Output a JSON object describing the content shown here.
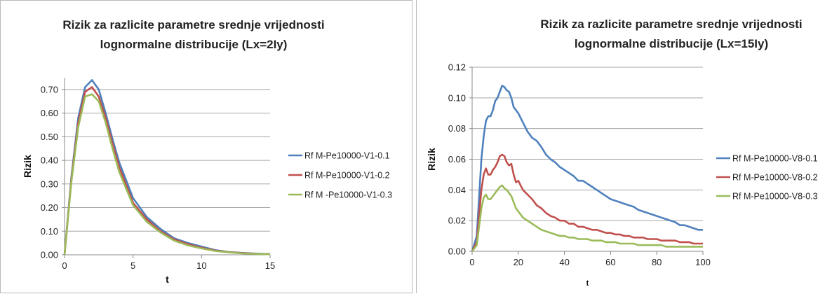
{
  "chart_data": [
    {
      "type": "line",
      "title_lines": [
        "Rizik za razlicite parametre srednje vrijednosti",
        "lognormalne distribucije (Lx=2Iy)"
      ],
      "xlabel": "t",
      "ylabel": "Rizik",
      "xlim": [
        0,
        15
      ],
      "ylim": [
        0,
        0.75
      ],
      "xticks": [
        0,
        5,
        10,
        15
      ],
      "xtick_labels": [
        "0",
        "5",
        "10",
        "15"
      ],
      "yticks": [
        0,
        0.1,
        0.2,
        0.3,
        0.4,
        0.5,
        0.6,
        0.7
      ],
      "ytick_labels": [
        "0.00",
        "0.10",
        "0.20",
        "0.30",
        "0.40",
        "0.50",
        "0.60",
        "0.70"
      ],
      "grid": "horizontal",
      "legend": "right",
      "series": [
        {
          "name": "Rf M-Pe10000-V1-0.1",
          "color": "#4f81bd",
          "x": [
            0,
            0.5,
            1,
            1.5,
            2,
            2.5,
            3,
            3.5,
            4,
            5,
            6,
            7,
            8,
            9,
            10,
            11,
            12,
            13,
            14,
            15
          ],
          "y": [
            0.0,
            0.33,
            0.58,
            0.71,
            0.74,
            0.7,
            0.6,
            0.49,
            0.39,
            0.24,
            0.16,
            0.11,
            0.07,
            0.05,
            0.035,
            0.02,
            0.012,
            0.008,
            0.005,
            0.003
          ]
        },
        {
          "name": "Rf M-Pe10000-V1-0.2",
          "color": "#c0504d",
          "x": [
            0,
            0.5,
            1,
            1.5,
            2,
            2.5,
            3,
            3.5,
            4,
            5,
            6,
            7,
            8,
            9,
            10,
            11,
            12,
            13,
            14,
            15
          ],
          "y": [
            0.0,
            0.32,
            0.56,
            0.69,
            0.71,
            0.67,
            0.58,
            0.47,
            0.37,
            0.22,
            0.15,
            0.1,
            0.065,
            0.045,
            0.03,
            0.018,
            0.011,
            0.007,
            0.004,
            0.003
          ]
        },
        {
          "name": "Rf M -Pe10000-V1-0.3",
          "color": "#9bbb59",
          "x": [
            0,
            0.5,
            1,
            1.5,
            2,
            2.5,
            3,
            3.5,
            4,
            5,
            6,
            7,
            8,
            9,
            10,
            11,
            12,
            13,
            14,
            15
          ],
          "y": [
            0.0,
            0.31,
            0.54,
            0.67,
            0.68,
            0.65,
            0.56,
            0.45,
            0.35,
            0.21,
            0.14,
            0.095,
            0.06,
            0.04,
            0.027,
            0.016,
            0.01,
            0.006,
            0.004,
            0.002
          ]
        }
      ]
    },
    {
      "type": "line",
      "title_lines": [
        "Rizik za razlicite parametre srednje vrijednosti",
        "lognormalne distribucije (Lx=15Iy)"
      ],
      "xlabel": "t",
      "ylabel": "Rizik",
      "xlim": [
        0,
        100
      ],
      "ylim": [
        0,
        0.12
      ],
      "xticks": [
        0,
        20,
        40,
        60,
        80,
        100
      ],
      "xtick_labels": [
        "0",
        "20",
        "40",
        "60",
        "80",
        "100"
      ],
      "yticks": [
        0,
        0.02,
        0.04,
        0.06,
        0.08,
        0.1,
        0.12
      ],
      "ytick_labels": [
        "0.00",
        "0.02",
        "0.04",
        "0.06",
        "0.08",
        "0.10",
        "0.12"
      ],
      "grid": "horizontal",
      "legend": "right",
      "series": [
        {
          "name": "Rf M-Pe10000-V8-0.1",
          "color": "#4f81bd",
          "x": [
            0,
            2,
            4,
            5,
            6,
            7,
            8,
            9,
            10,
            11,
            12,
            13,
            14,
            15,
            16,
            17,
            18,
            19,
            20,
            22,
            24,
            26,
            28,
            30,
            32,
            34,
            36,
            38,
            40,
            42,
            44,
            46,
            48,
            50,
            52,
            54,
            56,
            58,
            60,
            62,
            64,
            66,
            68,
            70,
            72,
            74,
            76,
            78,
            80,
            82,
            84,
            86,
            88,
            90,
            92,
            94,
            96,
            98,
            100
          ],
          "y": [
            0.0,
            0.01,
            0.06,
            0.075,
            0.085,
            0.088,
            0.088,
            0.092,
            0.098,
            0.1,
            0.104,
            0.108,
            0.107,
            0.105,
            0.104,
            0.1,
            0.094,
            0.092,
            0.09,
            0.084,
            0.078,
            0.074,
            0.072,
            0.068,
            0.063,
            0.06,
            0.058,
            0.055,
            0.053,
            0.051,
            0.049,
            0.046,
            0.046,
            0.044,
            0.042,
            0.04,
            0.038,
            0.036,
            0.034,
            0.033,
            0.032,
            0.031,
            0.03,
            0.029,
            0.027,
            0.026,
            0.025,
            0.024,
            0.023,
            0.022,
            0.021,
            0.02,
            0.019,
            0.017,
            0.017,
            0.016,
            0.015,
            0.014,
            0.014
          ]
        },
        {
          "name": "Rf M-Pe10000-V8-0.2",
          "color": "#c0504d",
          "x": [
            0,
            2,
            4,
            5,
            6,
            7,
            8,
            9,
            10,
            11,
            12,
            13,
            14,
            15,
            16,
            17,
            18,
            19,
            20,
            22,
            24,
            26,
            28,
            30,
            32,
            34,
            36,
            38,
            40,
            42,
            44,
            46,
            48,
            50,
            52,
            54,
            56,
            58,
            60,
            62,
            64,
            66,
            68,
            70,
            72,
            74,
            76,
            78,
            80,
            82,
            84,
            86,
            88,
            90,
            92,
            94,
            96,
            98,
            100
          ],
          "y": [
            0.0,
            0.006,
            0.04,
            0.05,
            0.054,
            0.05,
            0.05,
            0.053,
            0.055,
            0.058,
            0.062,
            0.063,
            0.062,
            0.058,
            0.056,
            0.057,
            0.05,
            0.045,
            0.046,
            0.04,
            0.037,
            0.034,
            0.03,
            0.028,
            0.025,
            0.023,
            0.022,
            0.02,
            0.02,
            0.018,
            0.018,
            0.016,
            0.016,
            0.015,
            0.014,
            0.014,
            0.013,
            0.012,
            0.012,
            0.011,
            0.011,
            0.01,
            0.01,
            0.009,
            0.009,
            0.009,
            0.008,
            0.008,
            0.008,
            0.007,
            0.007,
            0.007,
            0.007,
            0.006,
            0.006,
            0.006,
            0.005,
            0.005,
            0.005
          ]
        },
        {
          "name": "Rf M-Pe10000-V8-0.3",
          "color": "#9bbb59",
          "x": [
            0,
            2,
            4,
            5,
            6,
            7,
            8,
            9,
            10,
            11,
            12,
            13,
            14,
            15,
            16,
            17,
            18,
            19,
            20,
            22,
            24,
            26,
            28,
            30,
            32,
            34,
            36,
            38,
            40,
            42,
            44,
            46,
            48,
            50,
            52,
            54,
            56,
            58,
            60,
            62,
            64,
            66,
            68,
            70,
            72,
            74,
            76,
            78,
            80,
            82,
            84,
            86,
            88,
            90,
            92,
            94,
            96,
            98,
            100
          ],
          "y": [
            0.0,
            0.004,
            0.028,
            0.035,
            0.037,
            0.034,
            0.034,
            0.036,
            0.038,
            0.04,
            0.042,
            0.043,
            0.041,
            0.04,
            0.038,
            0.036,
            0.032,
            0.028,
            0.026,
            0.022,
            0.02,
            0.018,
            0.016,
            0.014,
            0.013,
            0.012,
            0.011,
            0.01,
            0.01,
            0.009,
            0.009,
            0.008,
            0.008,
            0.008,
            0.007,
            0.007,
            0.007,
            0.006,
            0.006,
            0.006,
            0.005,
            0.005,
            0.005,
            0.005,
            0.004,
            0.004,
            0.004,
            0.004,
            0.004,
            0.004,
            0.003,
            0.003,
            0.003,
            0.003,
            0.003,
            0.003,
            0.003,
            0.003,
            0.003
          ]
        }
      ]
    }
  ]
}
